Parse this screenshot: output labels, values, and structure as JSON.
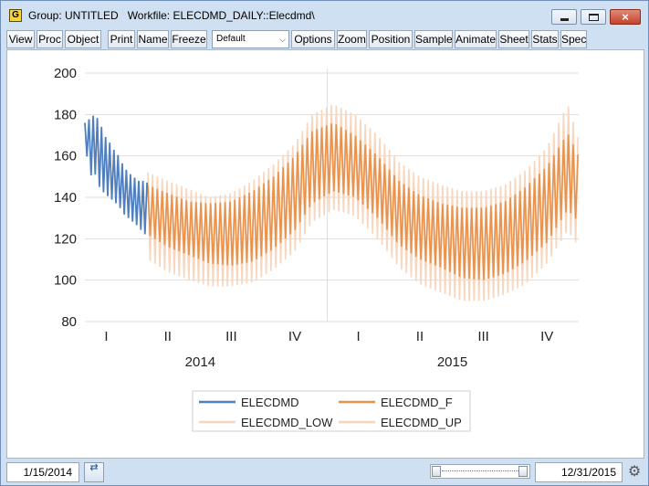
{
  "window": {
    "title": "Group: UNTITLED   Workfile: ELECDMD_DAILY::Elecdmd\\",
    "app_icon_letter": "G",
    "close_glyph": "×"
  },
  "toolbar": {
    "buttons": [
      "View",
      "Proc",
      "Object",
      "Print",
      "Name",
      "Freeze",
      "Options",
      "Zoom",
      "Position",
      "Sample",
      "Animate",
      "Sheet",
      "Stats",
      "Spec"
    ],
    "dropdown_value": "Default",
    "dropdown_chevron": "⌵"
  },
  "status": {
    "start_date": "1/15/2014",
    "end_date": "12/31/2015",
    "swap_glyph": "⇄",
    "settings_glyph": "⚙"
  },
  "colors": {
    "actual": "#4f7fbf",
    "forecast": "#e8924c",
    "band": "#f7d6bd",
    "grid": "#dddddd"
  },
  "chart_data": {
    "type": "line",
    "ylim": [
      80,
      200
    ],
    "y_ticks": [
      "80",
      "100",
      "120",
      "140",
      "160",
      "180",
      "200"
    ],
    "x_quarters": [
      "I",
      "II",
      "III",
      "IV",
      "I",
      "II",
      "III",
      "IV"
    ],
    "x_years": [
      "2014",
      "2015"
    ],
    "x_range": [
      "2014-01-15",
      "2015-12-31"
    ],
    "legend": [
      "ELECDMD",
      "ELECDMD_F",
      "ELECDMD_LOW",
      "ELECDMD_UP"
    ],
    "series": [
      {
        "name": "ELECDMD",
        "x": [
          "2014-01-15",
          "2014-01-22",
          "2014-01-29",
          "2014-02-05",
          "2014-02-12",
          "2014-02-19",
          "2014-02-26",
          "2014-03-05",
          "2014-03-12",
          "2014-03-19",
          "2014-03-26",
          "2014-04-02",
          "2014-04-09",
          "2014-04-16"
        ],
        "upper": [
          176,
          178,
          180,
          177,
          170,
          167,
          163,
          160,
          155,
          152,
          150,
          148,
          148,
          147
        ],
        "lower": [
          167,
          150,
          152,
          145,
          142,
          140,
          138,
          136,
          132,
          130,
          128,
          126,
          123,
          121
        ]
      },
      {
        "name": "ELECDMD_F",
        "x": [
          "2014-04-16",
          "2014-05-15",
          "2014-06-15",
          "2014-07-15",
          "2014-08-15",
          "2014-09-15",
          "2014-10-15",
          "2014-11-15",
          "2014-12-10",
          "2015-01-10",
          "2015-02-10",
          "2015-03-15",
          "2015-04-15",
          "2015-05-15",
          "2015-06-15",
          "2015-07-15",
          "2015-08-15",
          "2015-09-15",
          "2015-10-15",
          "2015-11-15",
          "2015-12-15",
          "2015-12-31"
        ],
        "upper": [
          146,
          142,
          138,
          137,
          138,
          143,
          150,
          160,
          172,
          176,
          170,
          160,
          148,
          141,
          137,
          135,
          135,
          138,
          145,
          155,
          171,
          160
        ],
        "lower": [
          122,
          116,
          112,
          108,
          107,
          109,
          115,
          124,
          137,
          143,
          140,
          130,
          117,
          110,
          106,
          101,
          100,
          103,
          109,
          118,
          134,
          128
        ]
      },
      {
        "name": "ELECDMD_LOW",
        "x": [
          "2014-04-16",
          "2014-05-15",
          "2014-06-15",
          "2014-07-15",
          "2014-08-15",
          "2014-09-15",
          "2014-10-15",
          "2014-11-15",
          "2014-12-10",
          "2015-01-10",
          "2015-02-10",
          "2015-03-15",
          "2015-04-15",
          "2015-05-15",
          "2015-06-15",
          "2015-07-15",
          "2015-08-15",
          "2015-09-15",
          "2015-10-15",
          "2015-11-15",
          "2015-12-15",
          "2015-12-31"
        ],
        "values": [
          110,
          104,
          100,
          97,
          97,
          99,
          105,
          114,
          128,
          134,
          131,
          120,
          106,
          98,
          94,
          90,
          90,
          93,
          98,
          108,
          124,
          116
        ]
      },
      {
        "name": "ELECDMD_UP",
        "x": [
          "2014-04-16",
          "2014-05-15",
          "2014-06-15",
          "2014-07-15",
          "2014-08-15",
          "2014-09-15",
          "2014-10-15",
          "2014-11-15",
          "2014-12-10",
          "2015-01-10",
          "2015-02-10",
          "2015-03-15",
          "2015-04-15",
          "2015-05-15",
          "2015-06-15",
          "2015-07-15",
          "2015-08-15",
          "2015-09-15",
          "2015-10-15",
          "2015-11-15",
          "2015-12-15",
          "2015-12-31"
        ],
        "values": [
          152,
          148,
          144,
          140,
          142,
          148,
          156,
          166,
          180,
          185,
          180,
          170,
          157,
          150,
          146,
          143,
          143,
          146,
          153,
          164,
          185,
          168
        ]
      }
    ]
  }
}
